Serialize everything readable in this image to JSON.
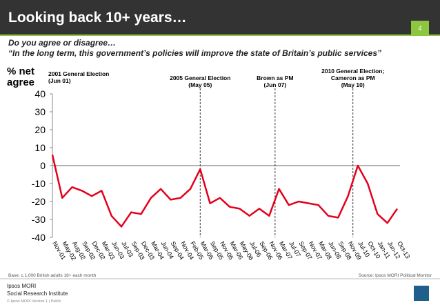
{
  "header": {
    "title": "Looking back 10+ years…",
    "page": "4"
  },
  "question": {
    "line1": "Do you agree or disagree…",
    "line2": "“In the long term, this government’s policies will improve the state of Britain’s public services”"
  },
  "chart_data": {
    "type": "line",
    "y_label": [
      "% net",
      "agree"
    ],
    "categories": [
      "Nov-01",
      "May-02",
      "Aug-02",
      "Sep-02",
      "Dec-02",
      "Mar-03",
      "Jun-03",
      "Jul-03",
      "Sep-03",
      "Dec-03",
      "Mar-04",
      "Jun-04",
      "Sep-04",
      "Nov-04",
      "Feb-05",
      "Mar-05",
      "Sep-05",
      "Nov-05",
      "Mar-06",
      "May-06",
      "Jul-06",
      "Sep-06",
      "Nov-06",
      "Mar-07",
      "Jul-07",
      "Sep-07",
      "Nov-07",
      "Mar-08",
      "Jun-08",
      "Sep-08",
      "Nov-09",
      "Jul-10",
      "Oct-10",
      "Jan-11",
      "Jun-12",
      "Oct-13"
    ],
    "series": [
      {
        "name": "% net agree",
        "color": "#e3001b",
        "values": [
          6,
          -18,
          -12,
          -14,
          -17,
          -14,
          -28,
          -34,
          -26,
          -27,
          -18,
          -13,
          -19,
          -18,
          -13,
          -2,
          -21,
          -18,
          -23,
          -24,
          -28,
          -24,
          -28,
          -13,
          -22,
          -20,
          -21,
          -22,
          -28,
          -29,
          -17,
          0,
          -10,
          -27,
          -32,
          -24
        ]
      }
    ],
    "ylim": [
      -40,
      40
    ],
    "yticks": [
      40,
      30,
      20,
      10,
      0,
      -10,
      -20,
      -30,
      -40
    ],
    "annotations": [
      {
        "text": [
          "2001 General Election",
          "(Jun 01)"
        ]
      },
      {
        "text": [
          "2005 General Election",
          "(May 05)"
        ]
      },
      {
        "text": [
          "Brown as PM",
          "(Jun 07)"
        ]
      },
      {
        "text": [
          "2010 General Election;",
          "Cameron as PM",
          "(May 10)"
        ]
      }
    ]
  },
  "footer": {
    "base": "Base: c.1,000 British adults 18+ each month",
    "source": "Source: Ipsos MORI Political Monitor",
    "logo1": "Ipsos MORI",
    "logo2": "Social Research Institute",
    "copyright": "© Ipsos MORI    Version 1 | Public"
  }
}
